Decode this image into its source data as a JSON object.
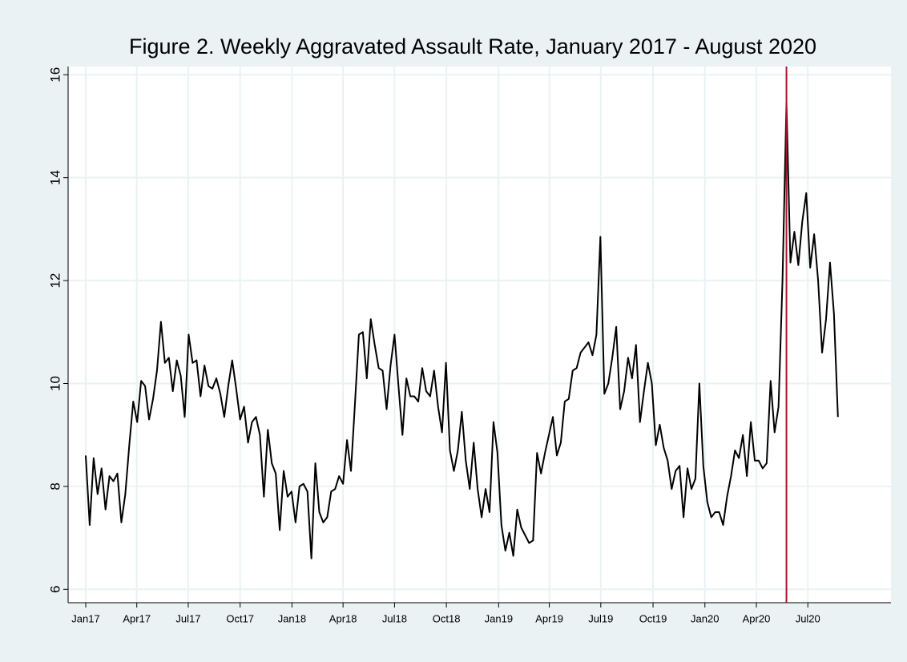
{
  "chart_data": {
    "type": "line",
    "title": "Figure 2. Weekly Aggravated Assault Rate, January 2017 - August 2020",
    "x": [
      0,
      1,
      2,
      3,
      4,
      5,
      6,
      7,
      8,
      9,
      10,
      11,
      12,
      13,
      14,
      15,
      16,
      17,
      18,
      19,
      20,
      21,
      22,
      23,
      24,
      25,
      26,
      27,
      28,
      29,
      30,
      31,
      32,
      33,
      34,
      35,
      36,
      37,
      38,
      39,
      40,
      41,
      42,
      43,
      44,
      45,
      46,
      47,
      48,
      49,
      50,
      51,
      52,
      53,
      54,
      55,
      56,
      57,
      58,
      59,
      60,
      61,
      62,
      63,
      64,
      65,
      66,
      67,
      68,
      69,
      70,
      71,
      72,
      73,
      74,
      75,
      76,
      77,
      78,
      79,
      80,
      81,
      82,
      83,
      84,
      85,
      86,
      87,
      88,
      89,
      90,
      91,
      92,
      93,
      94,
      95,
      96,
      97,
      98,
      99,
      100,
      101,
      102,
      103,
      104,
      105,
      106,
      107,
      108,
      109,
      110,
      111,
      112,
      113,
      114,
      115,
      116,
      117,
      118,
      119,
      120,
      121,
      122,
      123,
      124,
      125,
      126,
      127,
      128,
      129,
      130,
      131,
      132,
      133,
      134,
      135,
      136,
      137,
      138,
      139,
      140,
      141,
      142,
      143,
      144,
      145,
      146,
      147,
      148,
      149,
      150,
      151,
      152,
      153,
      154,
      155,
      156,
      157,
      158,
      159,
      160,
      161,
      162,
      163,
      164,
      165,
      166,
      167,
      168,
      169,
      170,
      171,
      172,
      173,
      174,
      175,
      176,
      177,
      178,
      179,
      180,
      181,
      182,
      183,
      184,
      185,
      186,
      187,
      188,
      189,
      190
    ],
    "series": [
      {
        "color": "#000000",
        "values": [
          8.6,
          7.25,
          8.55,
          7.85,
          8.35,
          7.55,
          8.2,
          8.1,
          8.25,
          7.3,
          7.85,
          8.8,
          9.65,
          9.25,
          10.05,
          9.95,
          9.3,
          9.7,
          10.25,
          11.2,
          10.4,
          10.5,
          9.85,
          10.45,
          10.15,
          9.35,
          10.95,
          10.4,
          10.45,
          9.75,
          10.35,
          9.95,
          9.9,
          10.1,
          9.8,
          9.35,
          9.95,
          10.45,
          9.9,
          9.3,
          9.55,
          8.85,
          9.25,
          9.35,
          9.0,
          7.8,
          9.1,
          8.45,
          8.25,
          7.15,
          8.3,
          7.8,
          7.9,
          7.3,
          8.0,
          8.05,
          7.9,
          6.6,
          8.45,
          7.5,
          7.3,
          7.4,
          7.9,
          7.95,
          8.2,
          8.05,
          8.9,
          8.3,
          9.6,
          10.95,
          11.0,
          10.1,
          11.25,
          10.75,
          10.3,
          10.25,
          9.5,
          10.35,
          10.95,
          9.95,
          9.0,
          10.1,
          9.75,
          9.75,
          9.65,
          10.3,
          9.85,
          9.75,
          10.25,
          9.55,
          9.05,
          10.4,
          8.7,
          8.3,
          8.7,
          9.45,
          8.5,
          7.95,
          8.85,
          7.95,
          7.4,
          7.95,
          7.5,
          9.25,
          8.65,
          7.25,
          6.75,
          7.1,
          6.65,
          7.55,
          7.2,
          7.05,
          6.9,
          6.95,
          8.65,
          8.25,
          8.65,
          9.0,
          9.35,
          8.6,
          8.85,
          9.65,
          9.7,
          10.25,
          10.3,
          10.6,
          10.7,
          10.8,
          10.55,
          10.95,
          12.85,
          9.8,
          10.0,
          10.5,
          11.1,
          9.5,
          9.85,
          10.5,
          10.1,
          10.75,
          9.25,
          9.85,
          10.4,
          10.0,
          8.8,
          9.2,
          8.75,
          8.5,
          7.95,
          8.3,
          8.4,
          7.4,
          8.35,
          7.95,
          8.15,
          10.0,
          8.4,
          7.7,
          7.4,
          7.5,
          7.5,
          7.25,
          7.8,
          8.2,
          8.7,
          8.55,
          9.0,
          8.2,
          9.25,
          8.5,
          8.5,
          8.35,
          8.45,
          10.05,
          9.05,
          9.55,
          12.0,
          15.45,
          12.35,
          12.95,
          12.3,
          13.15,
          13.7,
          12.25,
          12.9,
          12.0,
          10.6,
          11.25,
          12.35,
          11.35,
          9.35
        ]
      }
    ],
    "xlim": [
      -4.45,
      203.4
    ],
    "xticks": [
      {
        "value": 0,
        "label": "Jan17"
      },
      {
        "value": 12.9,
        "label": "Apr17"
      },
      {
        "value": 25.9,
        "label": "Jul17"
      },
      {
        "value": 39,
        "label": "Oct17"
      },
      {
        "value": 52.1,
        "label": "Jan18"
      },
      {
        "value": 65,
        "label": "Apr18"
      },
      {
        "value": 78,
        "label": "Jul18"
      },
      {
        "value": 91.1,
        "label": "Oct18"
      },
      {
        "value": 104.3,
        "label": "Jan19"
      },
      {
        "value": 117.1,
        "label": "Apr19"
      },
      {
        "value": 130.1,
        "label": "Jul19"
      },
      {
        "value": 143.3,
        "label": "Oct19"
      },
      {
        "value": 156.4,
        "label": "Jan20"
      },
      {
        "value": 169.4,
        "label": "Apr20"
      },
      {
        "value": 182.4,
        "label": "Jul20"
      }
    ],
    "ylim": [
      5.74,
      16.16
    ],
    "yticks": [
      6,
      8,
      10,
      12,
      14,
      16
    ],
    "grid": true,
    "vline": 177,
    "vline_color": "#a3172f"
  }
}
